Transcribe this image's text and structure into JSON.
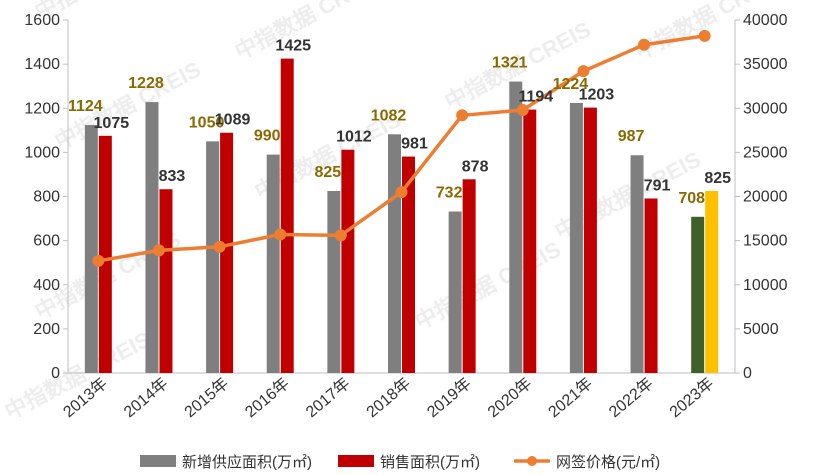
{
  "chart_data": {
    "type": "bar",
    "categories": [
      "2013年",
      "2014年",
      "2015年",
      "2016年",
      "2017年",
      "2018年",
      "2019年",
      "2020年",
      "2021年",
      "2022年",
      "2023年"
    ],
    "series": [
      {
        "name": "新增供应面积(万㎡)",
        "type": "bar",
        "axis": "left",
        "color": "#7f7f7f",
        "values": [
          1124,
          1228,
          1050,
          990,
          825,
          1082,
          732,
          1321,
          1224,
          987,
          708
        ],
        "highlight": {
          "index": 10,
          "color": "#3d6128"
        }
      },
      {
        "name": "销售面积(万㎡)",
        "type": "bar",
        "axis": "left",
        "color": "#c00000",
        "values": [
          1075,
          833,
          1089,
          1425,
          1012,
          981,
          878,
          1194,
          1203,
          791,
          825
        ],
        "highlight": {
          "index": 10,
          "color": "#ffc000"
        }
      },
      {
        "name": "网签价格(元/㎡)",
        "type": "line",
        "axis": "right",
        "color": "#ed7d31",
        "values": [
          12700,
          13900,
          14300,
          15700,
          15600,
          20500,
          29200,
          29800,
          34200,
          37200,
          38200
        ]
      }
    ],
    "y_left": {
      "min": 0,
      "max": 1600,
      "ticks": [
        0,
        200,
        400,
        600,
        800,
        1000,
        1200,
        1400,
        1600
      ]
    },
    "y_right": {
      "min": 0,
      "max": 40000,
      "ticks": [
        0,
        5000,
        10000,
        15000,
        20000,
        25000,
        30000,
        35000,
        40000
      ]
    },
    "legend_position": "bottom",
    "watermark": "中指数据 CREIS",
    "grid": false
  }
}
